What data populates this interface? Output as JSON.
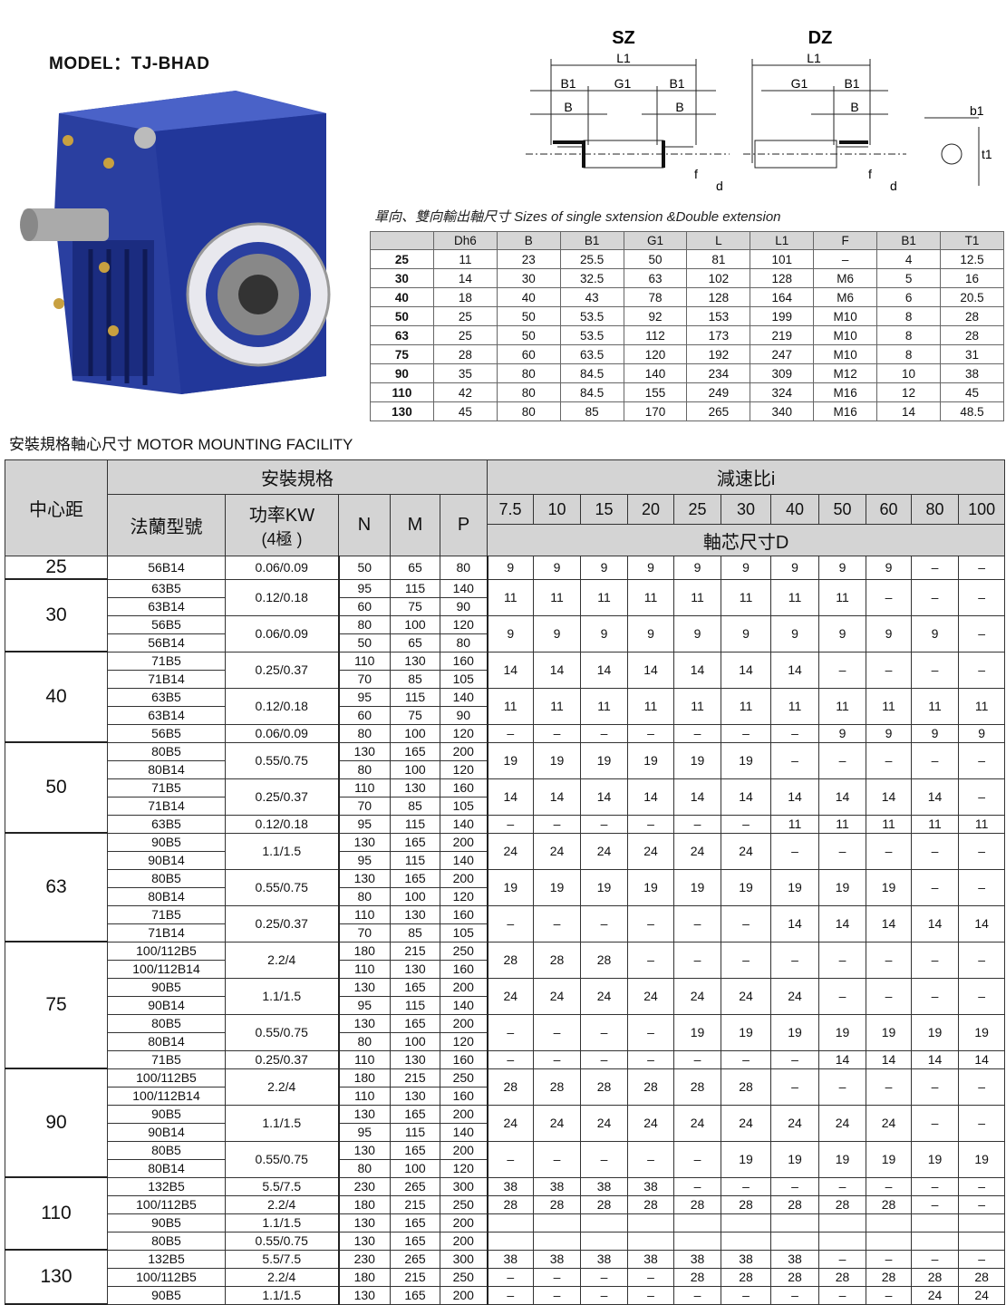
{
  "model": "MODEL：TJ-BHAD",
  "diagram": {
    "sz_title": "SZ",
    "dz_title": "DZ",
    "labels": {
      "L1": "L1",
      "B1": "B1",
      "G1": "G1",
      "B": "B",
      "f": "f",
      "d": "d",
      "b1": "b1",
      "t1": "t1"
    }
  },
  "shaft_subtitle": "單向、雙向輸出軸尺寸 Sizes of single sxtension &Double extension",
  "shaft_table": {
    "headers": [
      "",
      "Dh6",
      "B",
      "B1",
      "G1",
      "L",
      "L1",
      "F",
      "B1",
      "T1"
    ],
    "rows": [
      [
        "25",
        "11",
        "23",
        "25.5",
        "50",
        "81",
        "101",
        "–",
        "4",
        "12.5"
      ],
      [
        "30",
        "14",
        "30",
        "32.5",
        "63",
        "102",
        "128",
        "M6",
        "5",
        "16"
      ],
      [
        "40",
        "18",
        "40",
        "43",
        "78",
        "128",
        "164",
        "M6",
        "6",
        "20.5"
      ],
      [
        "50",
        "25",
        "50",
        "53.5",
        "92",
        "153",
        "199",
        "M10",
        "8",
        "28"
      ],
      [
        "63",
        "25",
        "50",
        "53.5",
        "112",
        "173",
        "219",
        "M10",
        "8",
        "28"
      ],
      [
        "75",
        "28",
        "60",
        "63.5",
        "120",
        "192",
        "247",
        "M10",
        "8",
        "31"
      ],
      [
        "90",
        "35",
        "80",
        "84.5",
        "140",
        "234",
        "309",
        "M12",
        "10",
        "38"
      ],
      [
        "110",
        "42",
        "80",
        "84.5",
        "155",
        "249",
        "324",
        "M16",
        "12",
        "45"
      ],
      [
        "130",
        "45",
        "80",
        "85",
        "170",
        "265",
        "340",
        "M16",
        "14",
        "48.5"
      ]
    ]
  },
  "mounting_title": "安裝規格軸心尺寸 MOTOR MOUNTING FACILITY",
  "mounting_table": {
    "h_center": "中心距",
    "h_install": "安裝規格",
    "h_ratio": "減速比i",
    "h_flange": "法蘭型號",
    "h_power": "功率KW",
    "h_power2": "(4極 )",
    "h_n": "N",
    "h_m": "M",
    "h_p": "P",
    "h_shaft": "軸芯尺寸D",
    "ratios": [
      "7.5",
      "10",
      "15",
      "20",
      "25",
      "30",
      "40",
      "50",
      "60",
      "80",
      "100"
    ],
    "groups": [
      {
        "center": "25",
        "blocks": [
          {
            "power": "0.06/0.09",
            "d": [
              "9",
              "9",
              "9",
              "9",
              "9",
              "9",
              "9",
              "9",
              "9",
              "–",
              "–"
            ],
            "rows": [
              [
                "56B14",
                "50",
                "65",
                "80"
              ]
            ]
          }
        ]
      },
      {
        "center": "30",
        "blocks": [
          {
            "power": "0.12/0.18",
            "d": [
              "11",
              "11",
              "11",
              "11",
              "11",
              "11",
              "11",
              "11",
              "–",
              "–",
              "–"
            ],
            "rows": [
              [
                "63B5",
                "95",
                "115",
                "140"
              ],
              [
                "63B14",
                "60",
                "75",
                "90"
              ]
            ]
          },
          {
            "power": "0.06/0.09",
            "d": [
              "9",
              "9",
              "9",
              "9",
              "9",
              "9",
              "9",
              "9",
              "9",
              "9",
              "–"
            ],
            "rows": [
              [
                "56B5",
                "80",
                "100",
                "120"
              ],
              [
                "56B14",
                "50",
                "65",
                "80"
              ]
            ]
          }
        ]
      },
      {
        "center": "40",
        "blocks": [
          {
            "power": "0.25/0.37",
            "d": [
              "14",
              "14",
              "14",
              "14",
              "14",
              "14",
              "14",
              "–",
              "–",
              "–",
              "–"
            ],
            "rows": [
              [
                "71B5",
                "110",
                "130",
                "160"
              ],
              [
                "71B14",
                "70",
                "85",
                "105"
              ]
            ]
          },
          {
            "power": "0.12/0.18",
            "d": [
              "11",
              "11",
              "11",
              "11",
              "11",
              "11",
              "11",
              "11",
              "11",
              "11",
              "11"
            ],
            "rows": [
              [
                "63B5",
                "95",
                "115",
                "140"
              ],
              [
                "63B14",
                "60",
                "75",
                "90"
              ]
            ]
          },
          {
            "power": "0.06/0.09",
            "d": [
              "–",
              "–",
              "–",
              "–",
              "–",
              "–",
              "–",
              "9",
              "9",
              "9",
              "9"
            ],
            "rows": [
              [
                "56B5",
                "80",
                "100",
                "120"
              ]
            ]
          }
        ]
      },
      {
        "center": "50",
        "blocks": [
          {
            "power": "0.55/0.75",
            "d": [
              "19",
              "19",
              "19",
              "19",
              "19",
              "19",
              "–",
              "–",
              "–",
              "–",
              "–"
            ],
            "rows": [
              [
                "80B5",
                "130",
                "165",
                "200"
              ],
              [
                "80B14",
                "80",
                "100",
                "120"
              ]
            ]
          },
          {
            "power": "0.25/0.37",
            "d": [
              "14",
              "14",
              "14",
              "14",
              "14",
              "14",
              "14",
              "14",
              "14",
              "14",
              "–"
            ],
            "rows": [
              [
                "71B5",
                "110",
                "130",
                "160"
              ],
              [
                "71B14",
                "70",
                "85",
                "105"
              ]
            ]
          },
          {
            "power": "0.12/0.18",
            "d": [
              "–",
              "–",
              "–",
              "–",
              "–",
              "–",
              "11",
              "11",
              "11",
              "11",
              "11"
            ],
            "rows": [
              [
                "63B5",
                "95",
                "115",
                "140"
              ]
            ]
          }
        ]
      },
      {
        "center": "63",
        "blocks": [
          {
            "power": "1.1/1.5",
            "d": [
              "24",
              "24",
              "24",
              "24",
              "24",
              "24",
              "–",
              "–",
              "–",
              "–",
              "–"
            ],
            "rows": [
              [
                "90B5",
                "130",
                "165",
                "200"
              ],
              [
                "90B14",
                "95",
                "115",
                "140"
              ]
            ]
          },
          {
            "power": "0.55/0.75",
            "d": [
              "19",
              "19",
              "19",
              "19",
              "19",
              "19",
              "19",
              "19",
              "19",
              "–",
              "–"
            ],
            "rows": [
              [
                "80B5",
                "130",
                "165",
                "200"
              ],
              [
                "80B14",
                "80",
                "100",
                "120"
              ]
            ]
          },
          {
            "power": "0.25/0.37",
            "d": [
              "–",
              "–",
              "–",
              "–",
              "–",
              "–",
              "14",
              "14",
              "14",
              "14",
              "14"
            ],
            "rows": [
              [
                "71B5",
                "110",
                "130",
                "160"
              ],
              [
                "71B14",
                "70",
                "85",
                "105"
              ]
            ]
          }
        ]
      },
      {
        "center": "75",
        "blocks": [
          {
            "power": "2.2/4",
            "d": [
              "28",
              "28",
              "28",
              "–",
              "–",
              "–",
              "–",
              "–",
              "–",
              "–",
              "–"
            ],
            "rows": [
              [
                "100/112B5",
                "180",
                "215",
                "250"
              ],
              [
                "100/112B14",
                "110",
                "130",
                "160"
              ]
            ]
          },
          {
            "power": "1.1/1.5",
            "d": [
              "24",
              "24",
              "24",
              "24",
              "24",
              "24",
              "24",
              "–",
              "–",
              "–",
              "–"
            ],
            "rows": [
              [
                "90B5",
                "130",
                "165",
                "200"
              ],
              [
                "90B14",
                "95",
                "115",
                "140"
              ]
            ]
          },
          {
            "power": "0.55/0.75",
            "d": [
              "–",
              "–",
              "–",
              "–",
              "19",
              "19",
              "19",
              "19",
              "19",
              "19",
              "19"
            ],
            "rows": [
              [
                "80B5",
                "130",
                "165",
                "200"
              ],
              [
                "80B14",
                "80",
                "100",
                "120"
              ]
            ]
          },
          {
            "power": "0.25/0.37",
            "d": [
              "–",
              "–",
              "–",
              "–",
              "–",
              "–",
              "–",
              "14",
              "14",
              "14",
              "14"
            ],
            "rows": [
              [
                "71B5",
                "110",
                "130",
                "160"
              ]
            ]
          }
        ]
      },
      {
        "center": "90",
        "blocks": [
          {
            "power": "2.2/4",
            "d": [
              "28",
              "28",
              "28",
              "28",
              "28",
              "28",
              "–",
              "–",
              "–",
              "–",
              "–"
            ],
            "rows": [
              [
                "100/112B5",
                "180",
                "215",
                "250"
              ],
              [
                "100/112B14",
                "110",
                "130",
                "160"
              ]
            ]
          },
          {
            "power": "1.1/1.5",
            "d": [
              "24",
              "24",
              "24",
              "24",
              "24",
              "24",
              "24",
              "24",
              "24",
              "–",
              "–"
            ],
            "rows": [
              [
                "90B5",
                "130",
                "165",
                "200"
              ],
              [
                "90B14",
                "95",
                "115",
                "140"
              ]
            ]
          },
          {
            "power": "0.55/0.75",
            "d": [
              "–",
              "–",
              "–",
              "–",
              "–",
              "19",
              "19",
              "19",
              "19",
              "19",
              "19"
            ],
            "rows": [
              [
                "80B5",
                "130",
                "165",
                "200"
              ],
              [
                "80B14",
                "80",
                "100",
                "120"
              ]
            ]
          }
        ]
      },
      {
        "center": "110",
        "blocks": [
          {
            "power": "5.5/7.5",
            "d": [
              "38",
              "38",
              "38",
              "38",
              "–",
              "–",
              "–",
              "–",
              "–",
              "–",
              "–"
            ],
            "rows": [
              [
                "132B5",
                "230",
                "265",
                "300"
              ]
            ]
          },
          {
            "power": "2.2/4",
            "d": [
              "28",
              "28",
              "28",
              "28",
              "28",
              "28",
              "28",
              "28",
              "28",
              "–",
              "–"
            ],
            "rows": [
              [
                "100/112B5",
                "180",
                "215",
                "250"
              ]
            ]
          },
          {
            "power": "1.1/1.5",
            "d": [
              "",
              "",
              "",
              "",
              "",
              "",
              "",
              "",
              "",
              "",
              ""
            ],
            "rows": [
              [
                "90B5",
                "130",
                "165",
                "200"
              ]
            ]
          },
          {
            "power": "0.55/0.75",
            "d": [
              "",
              "",
              "",
              "",
              "",
              "",
              "",
              "",
              "",
              "",
              ""
            ],
            "rows": [
              [
                "80B5",
                "130",
                "165",
                "200"
              ]
            ]
          }
        ]
      },
      {
        "center": "130",
        "blocks": [
          {
            "power": "5.5/7.5",
            "d": [
              "38",
              "38",
              "38",
              "38",
              "38",
              "38",
              "38",
              "–",
              "–",
              "–",
              "–"
            ],
            "rows": [
              [
                "132B5",
                "230",
                "265",
                "300"
              ]
            ]
          },
          {
            "power": "2.2/4",
            "d": [
              "–",
              "–",
              "–",
              "–",
              "28",
              "28",
              "28",
              "28",
              "28",
              "28",
              "28"
            ],
            "rows": [
              [
                "100/112B5",
                "180",
                "215",
                "250"
              ]
            ]
          },
          {
            "power": "1.1/1.5",
            "d": [
              "–",
              "–",
              "–",
              "–",
              "–",
              "–",
              "–",
              "–",
              "–",
              "24",
              "24"
            ],
            "rows": [
              [
                "90B5",
                "130",
                "165",
                "200"
              ]
            ]
          }
        ]
      }
    ]
  },
  "colors": {
    "gearbox_blue": "#2a3fa0",
    "header_gray": "#d4d4d4"
  }
}
